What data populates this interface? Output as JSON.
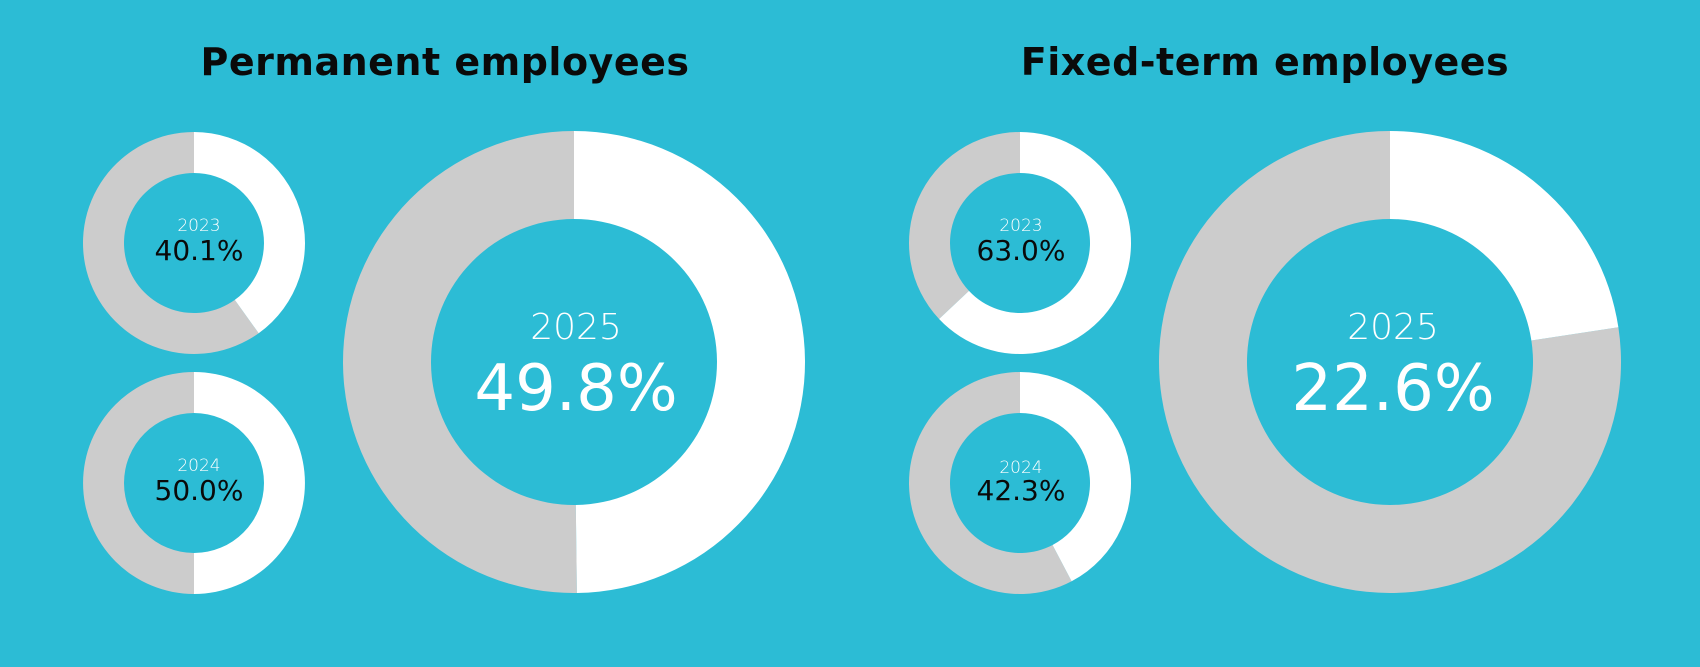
{
  "colors": {
    "background": "#2cbcd5",
    "highlight": "#ffffff",
    "remainder": "#cccccc",
    "title": "#0a0a0a"
  },
  "panels": [
    {
      "title": "Permanent employees",
      "donuts": [
        {
          "year": "2023",
          "label": "40.1%",
          "value": 40.1,
          "size": "small"
        },
        {
          "year": "2024",
          "label": "50.0%",
          "value": 50.0,
          "size": "small"
        },
        {
          "year": "2025",
          "label": "49.8%",
          "value": 49.8,
          "size": "large"
        }
      ]
    },
    {
      "title": "Fixed-term employees",
      "donuts": [
        {
          "year": "2023",
          "label": "63.0%",
          "value": 63.0,
          "size": "small"
        },
        {
          "year": "2024",
          "label": "42.3%",
          "value": 42.3,
          "size": "large_small"
        },
        {
          "year": "2025",
          "label": "22.6%",
          "value": 22.6,
          "size": "large"
        }
      ]
    }
  ],
  "chart_data": [
    {
      "type": "pie",
      "title": "Permanent employees",
      "categories": [
        "2023",
        "2024",
        "2025"
      ],
      "values": [
        40.1,
        50.0,
        49.8
      ],
      "unit": "%",
      "style": "donut",
      "legend": null
    },
    {
      "type": "pie",
      "title": "Fixed-term employees",
      "categories": [
        "2023",
        "2024",
        "2025"
      ],
      "values": [
        63.0,
        42.3,
        22.6
      ],
      "unit": "%",
      "style": "donut",
      "legend": null
    }
  ]
}
